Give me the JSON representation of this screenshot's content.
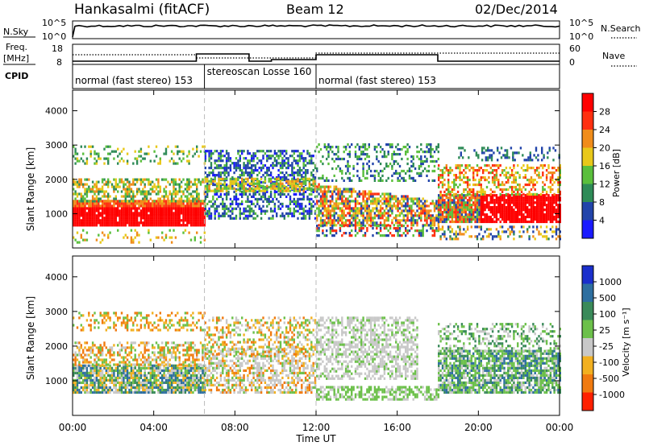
{
  "header": {
    "station": "Hankasalmi (fitACF)",
    "beam": "Beam 12",
    "date": "02/Dec/2014"
  },
  "noise_panel": {
    "left_label": "N.Sky",
    "right_label": "N.Search",
    "top_tick": "10^5",
    "bottom_tick": "10^0",
    "sky_level": 0.72
  },
  "freq_panel": {
    "left_label_1": "Freq.",
    "left_label_2": "[MHz]",
    "left_ticks": [
      "18",
      "8"
    ],
    "right_label": "Nave",
    "right_ticks": [
      "60",
      "0"
    ],
    "cpid_label": "CPID"
  },
  "cpid_modes": [
    {
      "label": "normal (fast stereo) 153",
      "start_h": 0,
      "end_h": 6.5
    },
    {
      "label": "stereoscan Losse 160",
      "start_h": 6.5,
      "end_h": 12
    },
    {
      "label": "normal (fast stereo) 153",
      "start_h": 12,
      "end_h": 24
    }
  ],
  "chart_data": [
    {
      "type": "heatmap",
      "name": "power",
      "ylabel": "Slant Range [km]",
      "yticks": [
        "1000",
        "2000",
        "3000",
        "4000"
      ],
      "ylim": [
        0,
        4600
      ],
      "colorbar_label": "Power [dB]",
      "colorbar_ticks": [
        "4",
        "8",
        "12",
        "16",
        "20",
        "24",
        "28"
      ],
      "colors": [
        "#1a1aff",
        "#2244aa",
        "#2e8b57",
        "#5abf3c",
        "#e8c81a",
        "#f08c1a",
        "#ff3010",
        "#ff0000"
      ]
    },
    {
      "type": "heatmap",
      "name": "velocity",
      "ylabel": "Slant Range [km]",
      "yticks": [
        "1000",
        "2000",
        "3000",
        "4000"
      ],
      "ylim": [
        0,
        4600
      ],
      "colorbar_label": "Velocity [m s⁻¹]",
      "colorbar_ticks": [
        "1000",
        "500",
        "100",
        "25",
        "-25",
        "-100",
        "-500",
        "-1000"
      ],
      "colors": [
        "#1a2fcc",
        "#2e6fa0",
        "#3a8a5a",
        "#6cc04a",
        "#c8c8c8",
        "#f2b020",
        "#f07a10",
        "#ff2000"
      ]
    }
  ],
  "time_axis": {
    "label": "Time UT",
    "ticks": [
      "00:00",
      "04:00",
      "08:00",
      "12:00",
      "16:00",
      "20:00",
      "00:00"
    ]
  }
}
